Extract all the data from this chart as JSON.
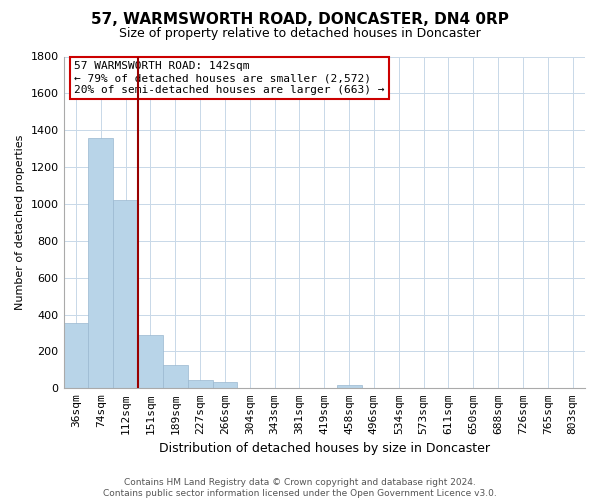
{
  "title": "57, WARMSWORTH ROAD, DONCASTER, DN4 0RP",
  "subtitle": "Size of property relative to detached houses in Doncaster",
  "xlabel": "Distribution of detached houses by size in Doncaster",
  "ylabel": "Number of detached properties",
  "bar_labels": [
    "36sqm",
    "74sqm",
    "112sqm",
    "151sqm",
    "189sqm",
    "227sqm",
    "266sqm",
    "304sqm",
    "343sqm",
    "381sqm",
    "419sqm",
    "458sqm",
    "496sqm",
    "534sqm",
    "573sqm",
    "611sqm",
    "650sqm",
    "688sqm",
    "726sqm",
    "765sqm",
    "803sqm"
  ],
  "bar_values": [
    355,
    1360,
    1020,
    290,
    128,
    43,
    35,
    0,
    0,
    0,
    0,
    18,
    0,
    0,
    0,
    0,
    0,
    0,
    0,
    0,
    0
  ],
  "bar_color": "#b8d4e8",
  "bar_edge_color": "#9ab8d0",
  "property_line_color": "#990000",
  "property_line_x": 2.5,
  "ylim": [
    0,
    1800
  ],
  "yticks": [
    0,
    200,
    400,
    600,
    800,
    1000,
    1200,
    1400,
    1600,
    1800
  ],
  "annotation_text_line1": "57 WARMSWORTH ROAD: 142sqm",
  "annotation_text_line2": "← 79% of detached houses are smaller (2,572)",
  "annotation_text_line3": "20% of semi-detached houses are larger (663) →",
  "footer_line1": "Contains HM Land Registry data © Crown copyright and database right 2024.",
  "footer_line2": "Contains public sector information licensed under the Open Government Licence v3.0.",
  "background_color": "#ffffff",
  "grid_color": "#c8d8e8",
  "title_fontsize": 11,
  "subtitle_fontsize": 9,
  "ylabel_fontsize": 8,
  "xlabel_fontsize": 9,
  "tick_fontsize": 8,
  "annotation_fontsize": 8,
  "footer_fontsize": 6.5
}
